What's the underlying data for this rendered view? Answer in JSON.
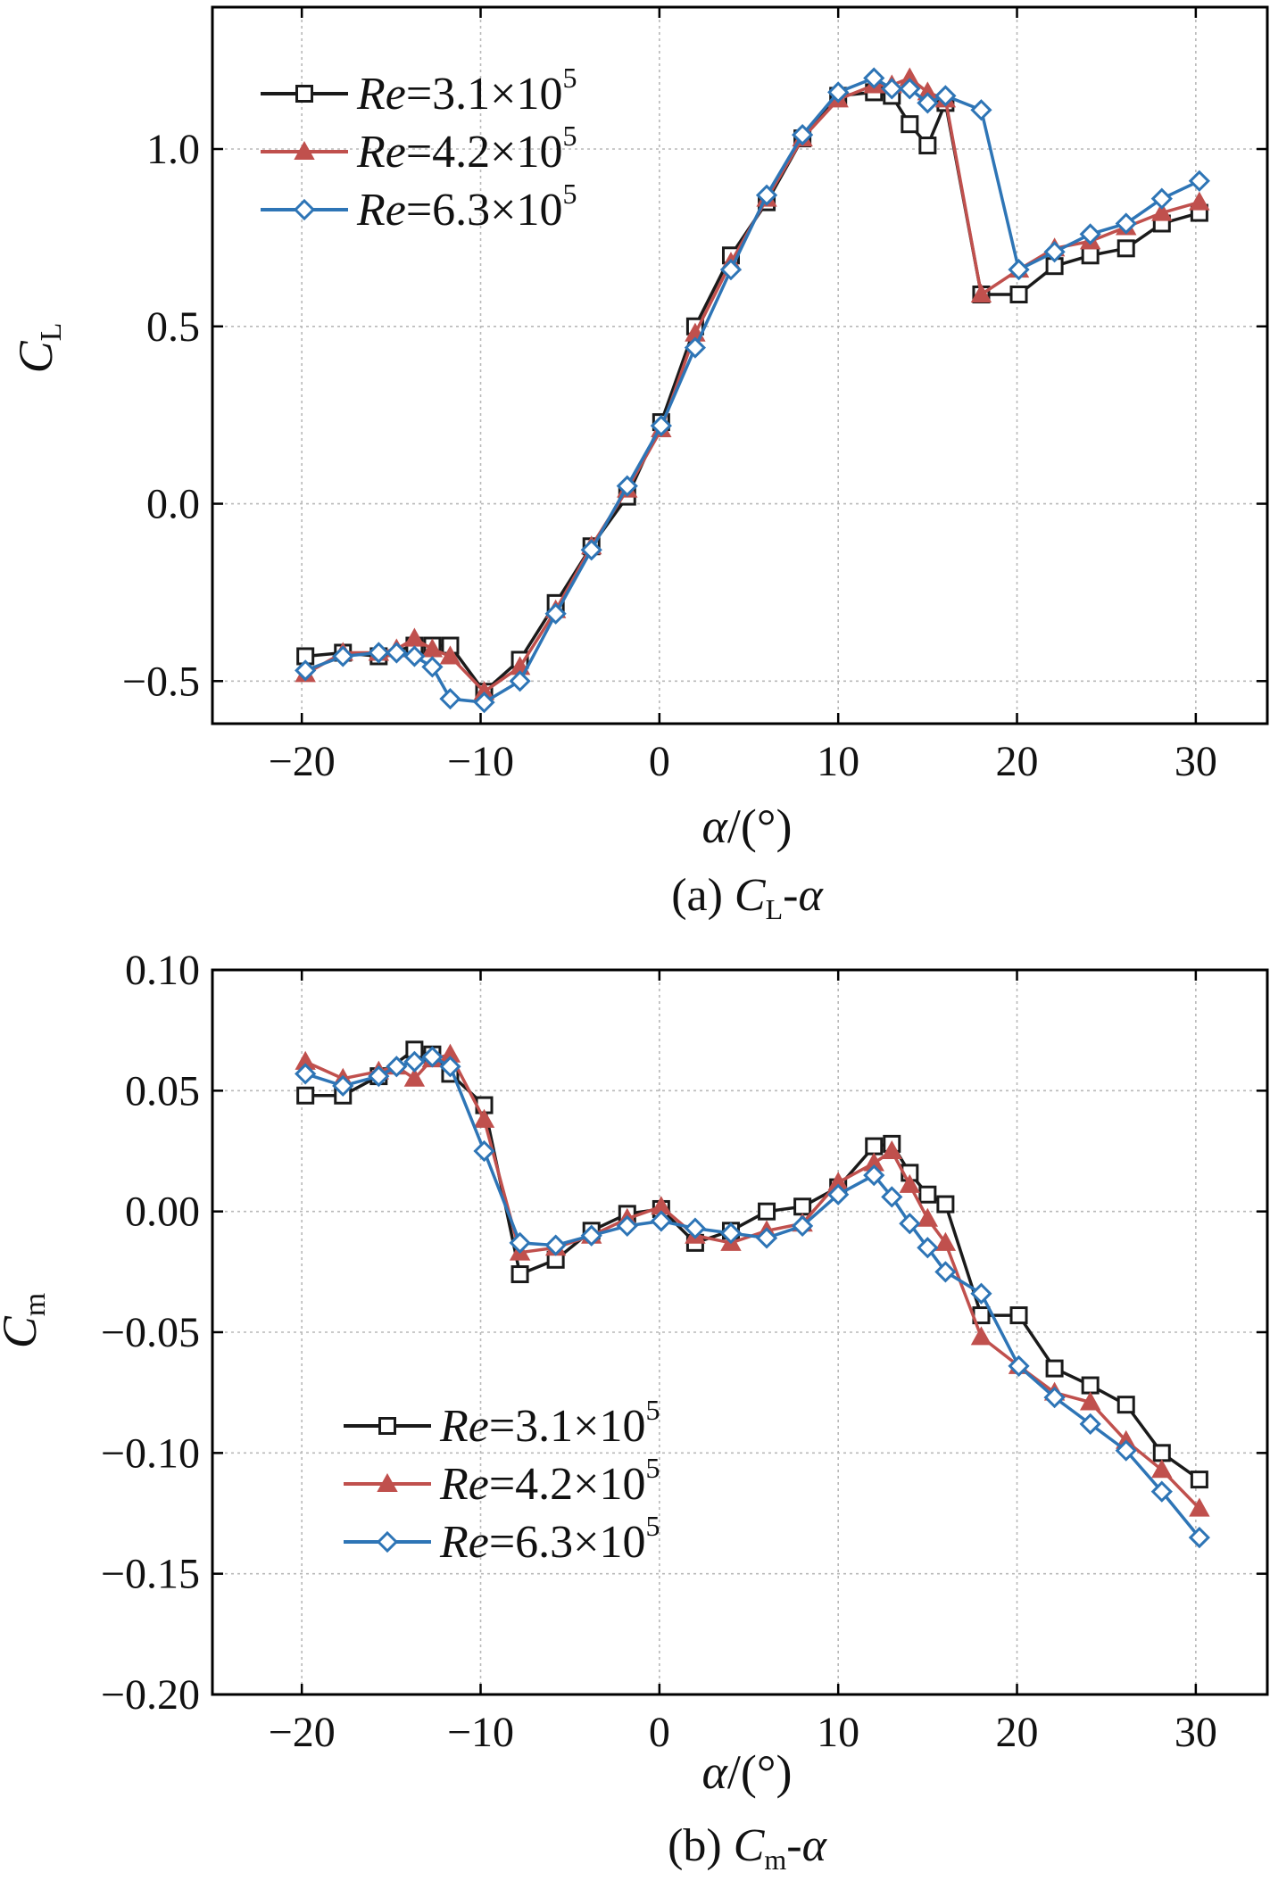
{
  "colors": {
    "re31": "#1a1a1a",
    "re42": "#c0504d",
    "re63": "#2e75b6",
    "grid": "#b8b8b8",
    "axis": "#000000"
  },
  "chart_data": [
    {
      "type": "line",
      "panel": "a",
      "caption_prefix": "(a) ",
      "caption_var": "C",
      "caption_sub": "L",
      "caption_suffix": "-α",
      "ylabel": "C",
      "ylabel_sub": "L",
      "xlabel": "α/(°)",
      "xlim": [
        -25,
        34
      ],
      "ylim": [
        -0.62,
        1.4
      ],
      "xticks": [
        -20,
        -10,
        0,
        10,
        20,
        30
      ],
      "xtick_labels": [
        "−20",
        "−10",
        "0",
        "10",
        "20",
        "30"
      ],
      "yticks": [
        -0.5,
        0.0,
        0.5,
        1.0
      ],
      "ytick_labels": [
        "−0.5",
        "0.0",
        "0.5",
        "1.0"
      ],
      "grid": true,
      "legend_position": "top-left",
      "series": [
        {
          "name": "Re=3.1×10⁵",
          "name_re": "Re",
          "name_val": "=3.1×10",
          "name_exp": "5",
          "color_key": "re31",
          "marker": "square",
          "x": [
            -19.8,
            -17.7,
            -15.7,
            -13.7,
            -12.7,
            -11.7,
            -9.8,
            -7.8,
            -5.8,
            -3.8,
            -1.8,
            0.1,
            2.0,
            4.0,
            6.0,
            8.0,
            10.0,
            12.0,
            13.0,
            14.0,
            15.0,
            16.0,
            18.0,
            20.1,
            22.1,
            24.1,
            26.1,
            28.1,
            30.2
          ],
          "y": [
            -0.43,
            -0.42,
            -0.43,
            -0.4,
            -0.4,
            -0.4,
            -0.53,
            -0.44,
            -0.28,
            -0.12,
            0.02,
            0.23,
            0.5,
            0.7,
            0.85,
            1.03,
            1.15,
            1.16,
            1.15,
            1.07,
            1.01,
            1.13,
            0.59,
            0.59,
            0.67,
            0.7,
            0.72,
            0.79,
            0.82
          ]
        },
        {
          "name": "Re=4.2×10⁵",
          "name_re": "Re",
          "name_val": "=4.2×10",
          "name_exp": "5",
          "color_key": "re42",
          "marker": "triangle",
          "x": [
            -19.8,
            -17.7,
            -15.7,
            -14.7,
            -13.7,
            -12.7,
            -11.7,
            -9.8,
            -7.8,
            -5.8,
            -3.8,
            -1.8,
            0.1,
            2.0,
            4.0,
            6.0,
            8.0,
            10.0,
            12.0,
            13.0,
            14.0,
            15.0,
            16.0,
            18.0,
            20.1,
            22.1,
            24.1,
            26.1,
            28.1,
            30.2
          ],
          "y": [
            -0.48,
            -0.42,
            -0.42,
            -0.41,
            -0.38,
            -0.41,
            -0.43,
            -0.53,
            -0.46,
            -0.3,
            -0.12,
            0.04,
            0.21,
            0.48,
            0.68,
            0.86,
            1.03,
            1.14,
            1.18,
            1.18,
            1.2,
            1.16,
            1.14,
            0.59,
            0.66,
            0.72,
            0.74,
            0.78,
            0.82,
            0.85
          ]
        },
        {
          "name": "Re=6.3×10⁵",
          "name_re": "Re",
          "name_val": "=6.3×10",
          "name_exp": "5",
          "color_key": "re63",
          "marker": "diamond",
          "x": [
            -19.8,
            -17.7,
            -15.7,
            -14.7,
            -13.7,
            -12.7,
            -11.7,
            -9.8,
            -7.8,
            -5.8,
            -3.8,
            -1.8,
            0.1,
            2.0,
            4.0,
            6.0,
            8.0,
            10.0,
            12.0,
            13.0,
            14.0,
            15.0,
            16.0,
            18.0,
            20.1,
            22.1,
            24.1,
            26.1,
            28.1,
            30.2
          ],
          "y": [
            -0.47,
            -0.43,
            -0.42,
            -0.42,
            -0.43,
            -0.46,
            -0.55,
            -0.56,
            -0.5,
            -0.31,
            -0.13,
            0.05,
            0.22,
            0.44,
            0.66,
            0.87,
            1.04,
            1.16,
            1.2,
            1.17,
            1.17,
            1.13,
            1.15,
            1.11,
            0.66,
            0.71,
            0.76,
            0.79,
            0.86,
            0.91
          ]
        }
      ]
    },
    {
      "type": "line",
      "panel": "b",
      "caption_prefix": "(b) ",
      "caption_var": "C",
      "caption_sub": "m",
      "caption_suffix": "-α",
      "ylabel": "C",
      "ylabel_sub": "m",
      "xlabel": "α/(°)",
      "xlim": [
        -25,
        34
      ],
      "ylim": [
        -0.2,
        0.1
      ],
      "xticks": [
        -20,
        -10,
        0,
        10,
        20,
        30
      ],
      "xtick_labels": [
        "−20",
        "−10",
        "0",
        "10",
        "20",
        "30"
      ],
      "yticks": [
        -0.2,
        -0.15,
        -0.1,
        -0.05,
        0.0,
        0.05,
        0.1
      ],
      "ytick_labels": [
        "−0.20",
        "−0.15",
        "−0.10",
        "−0.05",
        "0.00",
        "0.05",
        "0.10"
      ],
      "grid": true,
      "legend_position": "bottom-left",
      "series": [
        {
          "name": "Re=3.1×10⁵",
          "name_re": "Re",
          "name_val": "=3.1×10",
          "name_exp": "5",
          "color_key": "re31",
          "marker": "square",
          "x": [
            -19.8,
            -17.7,
            -15.7,
            -13.7,
            -12.7,
            -11.7,
            -9.8,
            -7.8,
            -5.8,
            -3.8,
            -1.8,
            0.1,
            2.0,
            4.0,
            6.0,
            8.0,
            10.0,
            12.0,
            13.0,
            14.0,
            15.0,
            16.0,
            18.0,
            20.1,
            22.1,
            24.1,
            26.1,
            28.1,
            30.2
          ],
          "y": [
            0.048,
            0.048,
            0.056,
            0.067,
            0.065,
            0.057,
            0.044,
            -0.026,
            -0.02,
            -0.008,
            -0.001,
            0.001,
            -0.013,
            -0.008,
            0.0,
            0.002,
            0.01,
            0.027,
            0.028,
            0.016,
            0.007,
            0.003,
            -0.043,
            -0.043,
            -0.065,
            -0.072,
            -0.08,
            -0.1,
            -0.111
          ]
        },
        {
          "name": "Re=4.2×10⁵",
          "name_re": "Re",
          "name_val": "=4.2×10",
          "name_exp": "5",
          "color_key": "re42",
          "marker": "triangle",
          "x": [
            -19.8,
            -17.7,
            -15.7,
            -14.7,
            -13.7,
            -12.7,
            -11.7,
            -9.8,
            -7.8,
            -5.8,
            -3.8,
            -1.8,
            0.1,
            2.0,
            4.0,
            6.0,
            8.0,
            10.0,
            12.0,
            13.0,
            14.0,
            15.0,
            16.0,
            18.0,
            20.1,
            22.1,
            24.1,
            26.1,
            28.1,
            30.2
          ],
          "y": [
            0.062,
            0.055,
            0.058,
            0.06,
            0.055,
            0.063,
            0.065,
            0.038,
            -0.017,
            -0.015,
            -0.01,
            -0.003,
            0.002,
            -0.01,
            -0.013,
            -0.008,
            -0.005,
            0.012,
            0.02,
            0.025,
            0.011,
            -0.003,
            -0.013,
            -0.052,
            -0.064,
            -0.075,
            -0.079,
            -0.095,
            -0.107,
            -0.123
          ]
        },
        {
          "name": "Re=6.3×10⁵",
          "name_re": "Re",
          "name_val": "=6.3×10",
          "name_exp": "5",
          "color_key": "re63",
          "marker": "diamond",
          "x": [
            -19.8,
            -17.7,
            -15.7,
            -14.7,
            -13.7,
            -12.7,
            -11.7,
            -9.8,
            -7.8,
            -5.8,
            -3.8,
            -1.8,
            0.1,
            2.0,
            4.0,
            6.0,
            8.0,
            10.0,
            12.0,
            13.0,
            14.0,
            15.0,
            16.0,
            18.0,
            20.1,
            22.1,
            24.1,
            26.1,
            28.1,
            30.2
          ],
          "y": [
            0.057,
            0.052,
            0.056,
            0.06,
            0.062,
            0.064,
            0.06,
            0.025,
            -0.013,
            -0.014,
            -0.01,
            -0.006,
            -0.004,
            -0.007,
            -0.009,
            -0.011,
            -0.006,
            0.007,
            0.015,
            0.006,
            -0.005,
            -0.015,
            -0.025,
            -0.034,
            -0.064,
            -0.077,
            -0.088,
            -0.099,
            -0.116,
            -0.135
          ]
        }
      ]
    }
  ]
}
